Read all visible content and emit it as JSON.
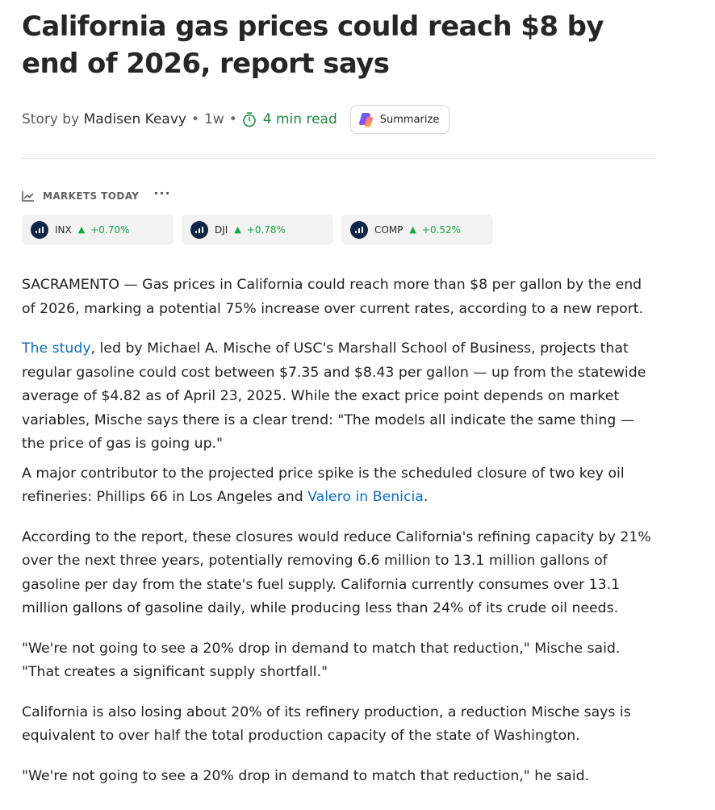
{
  "article": {
    "headline": "California gas prices could reach $8 by end of 2026, report says",
    "byline": {
      "prefix": "Story by",
      "author": "Madisen Keavy",
      "separator": "•",
      "age": "1w",
      "read_time": "4 min read",
      "read_time_color": "#1f8a3a"
    },
    "summarize_label": "Summarize"
  },
  "markets": {
    "title": "MARKETS TODAY",
    "more": "···",
    "tickers": [
      {
        "symbol": "INX",
        "arrow": "▲",
        "change": "+0.70%",
        "icon": "chart-icon"
      },
      {
        "symbol": "DJI",
        "arrow": "▲",
        "change": "+0.78%",
        "icon": "chart-icon"
      },
      {
        "symbol": "COMP",
        "arrow": "▲",
        "change": "+0.52%",
        "icon": "chart-icon"
      }
    ],
    "positive_color": "#16a34a"
  },
  "body": {
    "p1": "SACRAMENTO — Gas prices in California could reach more than $8 per gallon by the end of 2026, marking a potential 75% increase over current rates, according to a new report.",
    "p2_link": "The study",
    "p2_rest": ", led by Michael A. Mische of USC's Marshall School of Business, projects that regular gasoline could cost between $7.35 and $8.43 per gallon — up from the statewide average of $4.82 as of April 23, 2025. While the exact price point depends on market variables, Mische says there is a clear trend: \"The models all indicate the same thing — the price of gas is going up.\"",
    "p3_start": "A major contributor to the projected price spike is the scheduled closure of two key oil refineries: Phillips 66 in Los Angeles and ",
    "p3_link": "Valero in Benicia",
    "p3_end": ".",
    "p4": "According to the report, these closures would reduce California's refining capacity by 21% over the next three years, potentially removing 6.6 million to 13.1 million gallons of gasoline per day from the state's fuel supply. California currently consumes over 13.1 million gallons of gasoline daily, while producing less than 24% of its crude oil needs.",
    "p5": "\"We're not going to see a 20% drop in demand to match that reduction,\" Mische said. \"That creates a significant supply shortfall.\"",
    "p6": "California is also losing about 20% of its refinery production, a reduction Mische says is equivalent to over half the total production capacity of the state of Washington.",
    "p7": "\"We're not going to see a 20% drop in demand to match that reduction,\" he said.",
    "link_color": "#0f6cbd"
  }
}
